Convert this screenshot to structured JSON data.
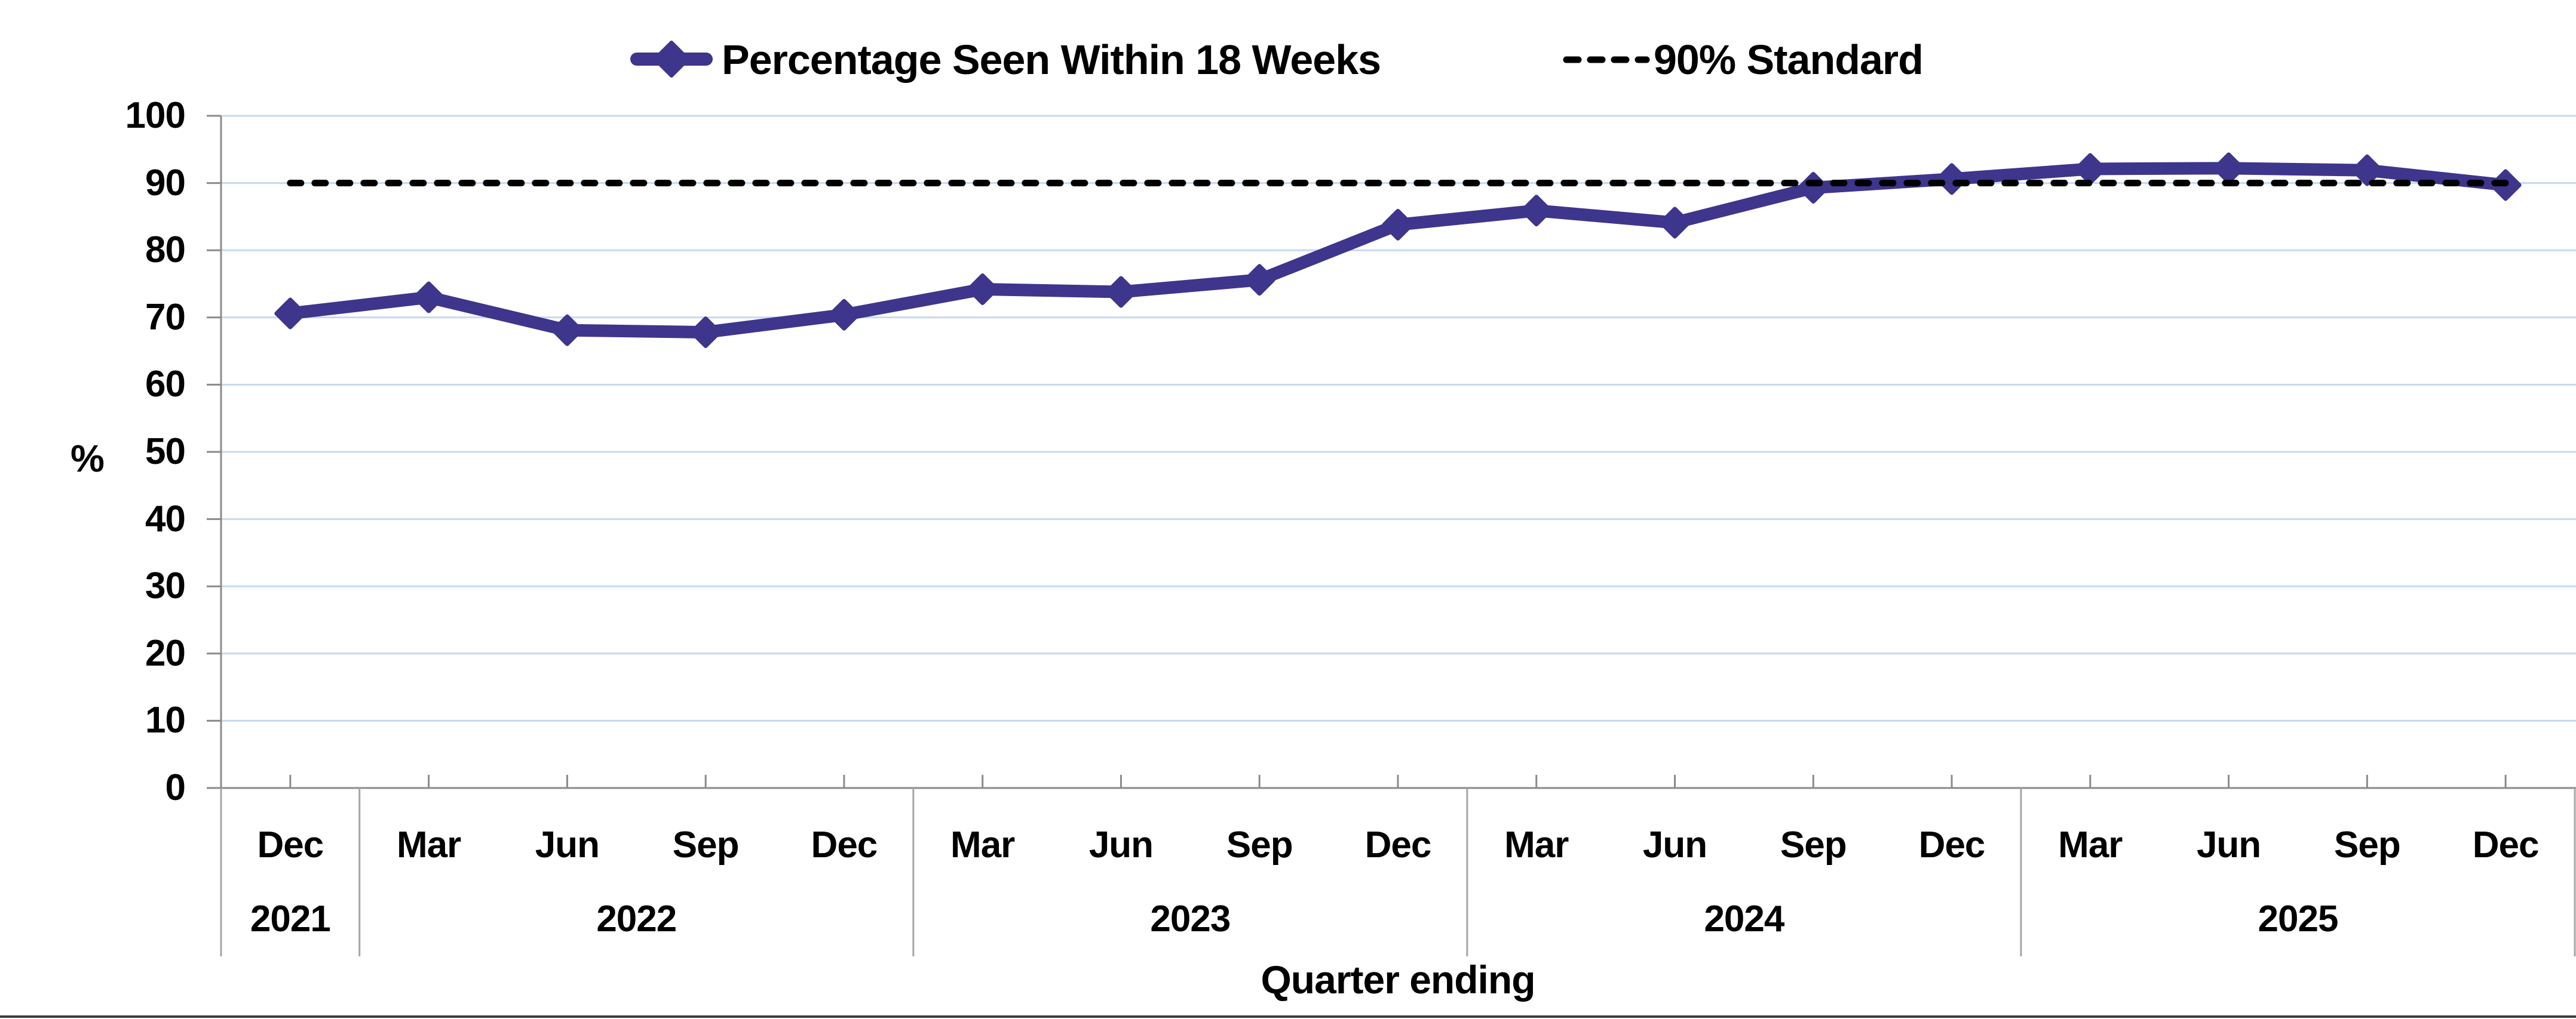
{
  "legend": {
    "series_label": "Percentage Seen Within 18 Weeks",
    "standard_label": "90% Standard"
  },
  "y_axis": {
    "unit_label": "%",
    "ticks": [
      0,
      10,
      20,
      30,
      40,
      50,
      60,
      70,
      80,
      90,
      100
    ]
  },
  "x_axis": {
    "title": "Quarter ending",
    "months": [
      "Dec",
      "Mar",
      "Jun",
      "Sep",
      "Dec",
      "Mar",
      "Jun",
      "Sep",
      "Dec",
      "Mar",
      "Jun",
      "Sep",
      "Dec",
      "Mar",
      "Jun",
      "Sep",
      "Dec"
    ],
    "years": [
      {
        "label": "2021",
        "quarters": 1
      },
      {
        "label": "2022",
        "quarters": 4
      },
      {
        "label": "2023",
        "quarters": 4
      },
      {
        "label": "2024",
        "quarters": 4
      },
      {
        "label": "2025",
        "quarters": 4
      }
    ]
  },
  "chart_data": {
    "type": "line",
    "title": "",
    "xlabel": "Quarter ending",
    "ylabel": "%",
    "ylim": [
      0,
      100
    ],
    "ytick_step": 10,
    "grid": "horizontal",
    "legend_position": "top-center",
    "categories": [
      "Dec 2021",
      "Mar 2022",
      "Jun 2022",
      "Sep 2022",
      "Dec 2022",
      "Mar 2023",
      "Jun 2023",
      "Sep 2023",
      "Dec 2023",
      "Mar 2024",
      "Jun 2024",
      "Sep 2024",
      "Dec 2024",
      "Mar 2025",
      "Jun 2025",
      "Sep 2025",
      "Dec 2025"
    ],
    "series": [
      {
        "name": "Percentage Seen Within 18 Weeks",
        "type": "line",
        "marker": "diamond",
        "color": "#3e358c",
        "values": [
          70.6,
          73.0,
          68.1,
          67.8,
          70.4,
          74.2,
          73.8,
          75.6,
          83.8,
          85.9,
          84.1,
          89.3,
          90.6,
          92.1,
          92.2,
          91.9,
          89.7
        ]
      },
      {
        "name": "90% Standard",
        "type": "reference-line",
        "style": "dashed",
        "color": "#000000",
        "value": 90
      }
    ]
  },
  "colors": {
    "series_line": "#3e358c",
    "standard_line": "#000000",
    "gridline": "#c6d9f1",
    "axis": "#8a8a8a",
    "year_separator": "#a6a6a6",
    "text": "#000000"
  }
}
